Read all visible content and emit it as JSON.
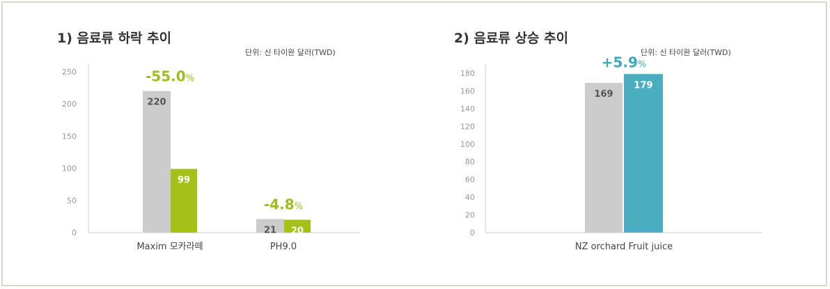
{
  "chart_data": [
    {
      "type": "bar",
      "title": "1) 음료류 하락 추이",
      "unit": "단위: 신 타이완 달러(TWD)",
      "categories": [
        "Maxim 모카라떼",
        "PH9.0"
      ],
      "series": [
        {
          "values": [
            220,
            21
          ],
          "color": "#cccccc"
        },
        {
          "values": [
            99,
            20
          ],
          "color": "#a5c019"
        }
      ],
      "change_labels": [
        {
          "value": "-55.0",
          "suffix": "%"
        },
        {
          "value": "-4.8",
          "suffix": "%"
        }
      ],
      "change_color": "#9fbe1e",
      "y_ticks": [
        "0",
        "50",
        "100",
        "150",
        "200",
        "250"
      ],
      "ylim": [
        0,
        250
      ]
    },
    {
      "type": "bar",
      "title": "2) 음료류 상승 추이",
      "unit": "단위: 신 타이완 달러(TWD)",
      "categories": [
        "NZ orchard Fruit juice"
      ],
      "series": [
        {
          "values": [
            169
          ],
          "color": "#cccccc"
        },
        {
          "values": [
            179
          ],
          "color": "#4aaec0"
        }
      ],
      "change_labels": [
        {
          "value": "+5.9",
          "suffix": "%"
        }
      ],
      "change_color": "#3aa8c0",
      "y_ticks": [
        "0",
        "20",
        "40",
        "60",
        "80",
        "100",
        "120",
        "140",
        "160",
        "180"
      ],
      "ylim": [
        0,
        180
      ]
    }
  ]
}
